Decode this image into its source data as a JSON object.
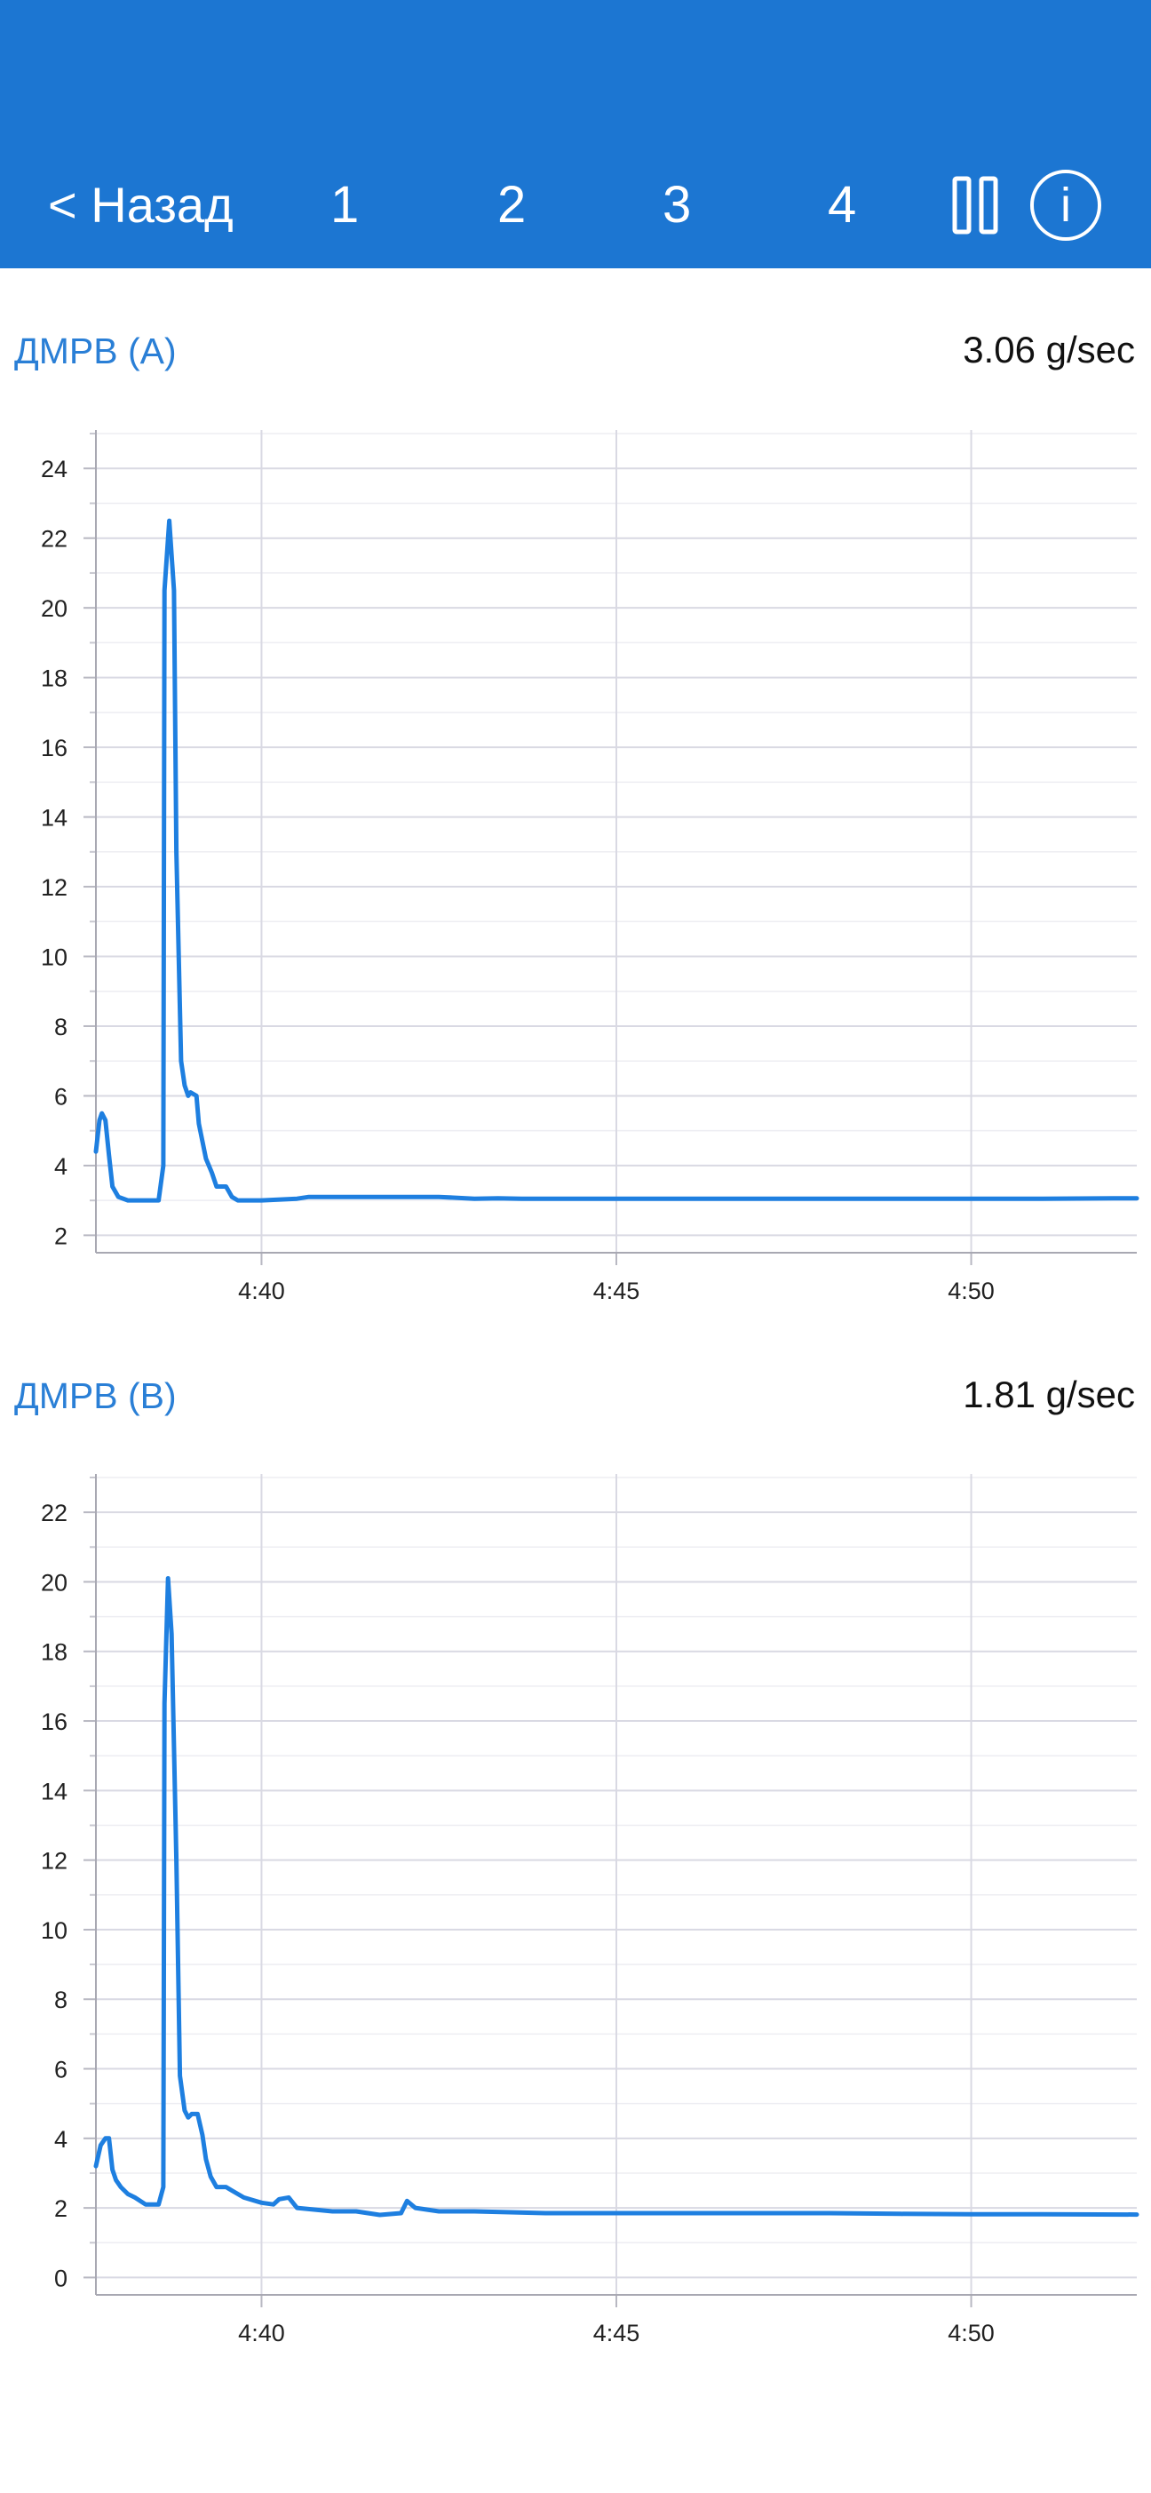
{
  "header": {
    "back_label": "< Назад",
    "tabs": [
      "1",
      "2",
      "3",
      "4"
    ],
    "pause_icon": "pause-icon",
    "info_icon": "info-icon",
    "info_glyph": "i",
    "background": "#1c76d2"
  },
  "panels": [
    {
      "title": "ДМРВ (A)",
      "value": "3.06",
      "unit": "g/sec"
    },
    {
      "title": "ДМРВ (B)",
      "value": "1.81",
      "unit": "g/sec"
    }
  ],
  "chart_data": [
    {
      "type": "line",
      "title": "ДМРВ (A)",
      "xlabel": "",
      "ylabel": "",
      "line_color": "#1e7fe0",
      "grid": true,
      "xlim": [
        "4:37:40",
        "4:52:20"
      ],
      "ylim": [
        1.5,
        25
      ],
      "x_ticks": [
        "4:40",
        "4:45",
        "4:50"
      ],
      "y_ticks": [
        2,
        4,
        6,
        8,
        10,
        12,
        14,
        16,
        18,
        20,
        22,
        24
      ],
      "series": [
        {
          "x": [
            "4:37:40",
            "4:37:43",
            "4:37:45",
            "4:37:48",
            "4:37:51",
            "4:37:54",
            "4:37:59",
            "4:38:07",
            "4:38:10",
            "4:38:15",
            "4:38:19",
            "4:38:33",
            "4:38:37",
            "4:38:38",
            "4:38:42",
            "4:38:46",
            "4:38:48",
            "4:38:52",
            "4:38:55",
            "4:38:58",
            "4:39:00",
            "4:39:05",
            "4:39:07",
            "4:39:13",
            "4:39:18",
            "4:39:22",
            "4:39:30",
            "4:39:35",
            "4:39:40",
            "4:40:00",
            "4:40:30",
            "4:40:40",
            "4:41:00",
            "4:41:30",
            "4:42:00",
            "4:42:30",
            "4:43:00",
            "4:43:20",
            "4:43:40",
            "4:44:00",
            "4:45:00",
            "4:46:00",
            "4:47:00",
            "4:48:00",
            "4:49:00",
            "4:50:00",
            "4:51:00",
            "4:52:00",
            "4:52:20"
          ],
          "y": [
            4.4,
            5.3,
            5.5,
            5.3,
            4.3,
            3.4,
            3.1,
            3.0,
            3.0,
            3.0,
            3.0,
            3.0,
            4.0,
            20.5,
            22.5,
            20.5,
            13,
            7.0,
            6.3,
            6.0,
            6.1,
            6.0,
            5.2,
            4.2,
            3.8,
            3.4,
            3.4,
            3.1,
            3.0,
            3.0,
            3.05,
            3.1,
            3.1,
            3.1,
            3.1,
            3.1,
            3.05,
            3.06,
            3.05,
            3.05,
            3.05,
            3.05,
            3.05,
            3.05,
            3.05,
            3.05,
            3.05,
            3.06,
            3.06
          ]
        }
      ]
    },
    {
      "type": "line",
      "title": "ДМРВ (B)",
      "xlabel": "",
      "ylabel": "",
      "line_color": "#1e7fe0",
      "grid": true,
      "xlim": [
        "4:37:40",
        "4:52:20"
      ],
      "ylim": [
        -0.5,
        23
      ],
      "x_ticks": [
        "4:40",
        "4:45",
        "4:50"
      ],
      "y_ticks": [
        0,
        2,
        4,
        6,
        8,
        10,
        12,
        14,
        16,
        18,
        20,
        22
      ],
      "series": [
        {
          "x": [
            "4:37:40",
            "4:37:44",
            "4:37:48",
            "4:37:51",
            "4:37:54",
            "4:37:57",
            "4:38:01",
            "4:38:07",
            "4:38:13",
            "4:38:22",
            "4:38:33",
            "4:38:37",
            "4:38:38",
            "4:38:41",
            "4:38:44",
            "4:38:48",
            "4:38:51",
            "4:38:55",
            "4:38:58",
            "4:39:01",
            "4:39:06",
            "4:39:10",
            "4:39:13",
            "4:39:17",
            "4:39:22",
            "4:39:30",
            "4:39:35",
            "4:39:45",
            "4:40:00",
            "4:40:10",
            "4:40:15",
            "4:40:23",
            "4:40:30",
            "4:41:00",
            "4:41:20",
            "4:41:40",
            "4:41:58",
            "4:42:03",
            "4:42:10",
            "4:42:30",
            "4:43:00",
            "4:44:00",
            "4:45:00",
            "4:46:00",
            "4:47:00",
            "4:48:00",
            "4:49:00",
            "4:50:00",
            "4:51:00",
            "4:52:20"
          ],
          "y": [
            3.2,
            3.8,
            4.0,
            4.0,
            3.1,
            2.8,
            2.6,
            2.4,
            2.3,
            2.1,
            2.1,
            2.6,
            16.5,
            20.1,
            18.5,
            12,
            5.8,
            4.8,
            4.6,
            4.7,
            4.7,
            4.1,
            3.4,
            2.9,
            2.6,
            2.6,
            2.5,
            2.3,
            2.15,
            2.1,
            2.25,
            2.3,
            2.0,
            1.9,
            1.9,
            1.8,
            1.85,
            2.2,
            2.0,
            1.9,
            1.9,
            1.85,
            1.85,
            1.85,
            1.85,
            1.85,
            1.83,
            1.82,
            1.82,
            1.81
          ]
        }
      ]
    }
  ]
}
